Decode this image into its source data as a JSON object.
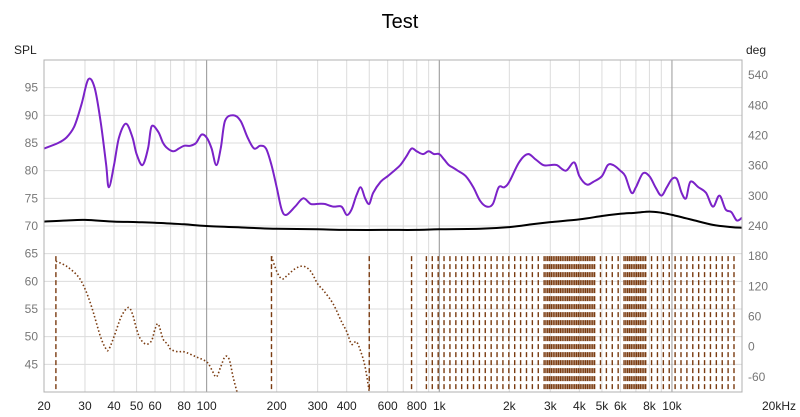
{
  "chart_data": {
    "type": "line",
    "title": "Test",
    "y_left_label": "SPL",
    "y_right_label": "deg",
    "x_unit": "Hz",
    "x_scale": "log",
    "xlim": [
      20,
      20000
    ],
    "ylim_left": [
      40,
      100
    ],
    "ylim_right": [
      -90,
      570
    ],
    "grid": true,
    "left_ticks": [
      {
        "value": 95,
        "label": "95"
      },
      {
        "value": 90,
        "label": "90"
      },
      {
        "value": 85,
        "label": "85"
      },
      {
        "value": 80,
        "label": "80"
      },
      {
        "value": 75,
        "label": "75"
      },
      {
        "value": 70,
        "label": "70"
      },
      {
        "value": 65,
        "label": "65"
      },
      {
        "value": 60,
        "label": "60"
      },
      {
        "value": 55,
        "label": "55"
      },
      {
        "value": 50,
        "label": "50"
      },
      {
        "value": 45,
        "label": "45"
      }
    ],
    "right_ticks": [
      {
        "value": 540,
        "label": "540"
      },
      {
        "value": 480,
        "label": "480"
      },
      {
        "value": 420,
        "label": "420"
      },
      {
        "value": 360,
        "label": "360"
      },
      {
        "value": 300,
        "label": "300"
      },
      {
        "value": 240,
        "label": "240"
      },
      {
        "value": 180,
        "label": "180"
      },
      {
        "value": 120,
        "label": "120"
      },
      {
        "value": 60,
        "label": "60"
      },
      {
        "value": 0,
        "label": "0"
      },
      {
        "value": -60,
        "label": "-60"
      }
    ],
    "x_ticks": [
      {
        "value": 20,
        "label": "20"
      },
      {
        "value": 30,
        "label": "30"
      },
      {
        "value": 40,
        "label": "40"
      },
      {
        "value": 50,
        "label": "50"
      },
      {
        "value": 60,
        "label": "60"
      },
      {
        "value": 80,
        "label": "80"
      },
      {
        "value": 100,
        "label": "100"
      },
      {
        "value": 200,
        "label": "200"
      },
      {
        "value": 300,
        "label": "300"
      },
      {
        "value": 400,
        "label": "400"
      },
      {
        "value": 600,
        "label": "600"
      },
      {
        "value": 800,
        "label": "800"
      },
      {
        "value": 1000,
        "label": "1k"
      },
      {
        "value": 2000,
        "label": "2k"
      },
      {
        "value": 3000,
        "label": "3k"
      },
      {
        "value": 4000,
        "label": "4k"
      },
      {
        "value": 5000,
        "label": "5k"
      },
      {
        "value": 6000,
        "label": "6k"
      },
      {
        "value": 8000,
        "label": "8k"
      },
      {
        "value": 10000,
        "label": "10k"
      },
      {
        "value": 20000,
        "label": "20kHz"
      }
    ],
    "series": [
      {
        "axis": "left",
        "color": "#7b22c8",
        "style": "solid",
        "x": [
          20,
          23,
          25,
          27,
          29,
          31,
          33,
          35,
          37,
          38,
          40,
          42,
          45,
          48,
          50,
          53,
          56,
          58,
          62,
          65,
          68,
          72,
          76,
          80,
          85,
          90,
          95,
          100,
          105,
          110,
          115,
          120,
          130,
          140,
          150,
          160,
          170,
          180,
          190,
          200,
          210,
          220,
          240,
          260,
          280,
          300,
          320,
          350,
          380,
          400,
          420,
          440,
          460,
          480,
          500,
          520,
          560,
          600,
          640,
          680,
          720,
          760,
          800,
          850,
          900,
          950,
          1000,
          1050,
          1100,
          1150,
          1200,
          1300,
          1400,
          1500,
          1600,
          1700,
          1800,
          1900,
          2000,
          2200,
          2400,
          2600,
          2800,
          3000,
          3200,
          3500,
          3800,
          4000,
          4300,
          4600,
          5000,
          5300,
          5600,
          6000,
          6300,
          6700,
          7000,
          7500,
          8000,
          8500,
          9000,
          9500,
          10000,
          10500,
          11000,
          11500,
          12000,
          13000,
          14000,
          15000,
          16000,
          17000,
          18000,
          19000,
          20000
        ],
        "values": [
          84,
          85,
          86,
          88,
          92,
          96.5,
          95,
          89,
          81,
          77,
          81,
          86,
          88.5,
          86,
          83,
          81,
          84,
          88,
          87,
          85,
          84,
          83.5,
          84,
          84.5,
          84.5,
          85,
          86.5,
          86,
          84,
          81,
          84,
          89,
          90,
          89,
          86,
          84,
          84.5,
          84,
          81,
          77,
          73,
          72,
          73.5,
          75,
          74,
          74,
          74,
          73.5,
          73.5,
          72,
          73,
          75.5,
          77,
          75,
          74,
          76,
          78,
          79,
          80,
          81,
          82.5,
          84,
          83.5,
          83,
          83.5,
          83,
          83,
          82,
          81,
          80.5,
          80,
          79,
          77,
          74.5,
          73.5,
          74,
          77,
          77,
          78,
          81.5,
          83,
          82,
          81,
          81,
          81,
          80,
          81.5,
          79,
          77.5,
          78,
          79,
          81,
          81,
          80,
          79,
          76,
          77,
          79.5,
          79,
          77,
          75.5,
          77,
          78.5,
          78.5,
          76,
          75,
          78,
          77,
          76,
          73.5,
          75.5,
          73,
          72.5,
          71,
          71.5
        ]
      },
      {
        "axis": "left",
        "color": "#000000",
        "style": "solid",
        "x": [
          20,
          25,
          30,
          40,
          50,
          60,
          80,
          100,
          150,
          200,
          300,
          400,
          600,
          800,
          1000,
          1500,
          2000,
          2500,
          3000,
          4000,
          5000,
          6000,
          7000,
          8000,
          9000,
          10000,
          12000,
          15000,
          18000,
          20000
        ],
        "values": [
          70.8,
          71.0,
          71.1,
          70.8,
          70.7,
          70.6,
          70.3,
          70.0,
          69.7,
          69.5,
          69.4,
          69.3,
          69.3,
          69.3,
          69.4,
          69.5,
          69.8,
          70.3,
          70.7,
          71.2,
          71.8,
          72.2,
          72.4,
          72.6,
          72.4,
          72.0,
          71.2,
          70.2,
          69.8,
          69.7
        ]
      },
      {
        "axis": "right",
        "color": "#7a3b10",
        "style": "dotted",
        "x": [
          22.5,
          25,
          28,
          30,
          32,
          35,
          37,
          38,
          40,
          43,
          46,
          48,
          50,
          52,
          55,
          58,
          60,
          62,
          65,
          68,
          70,
          75,
          80,
          90,
          100,
          105,
          110,
          115,
          120,
          125,
          130,
          135
        ],
        "values": [
          170,
          160,
          140,
          115,
          80,
          20,
          -5,
          -5,
          20,
          60,
          78,
          65,
          35,
          15,
          5,
          12,
          35,
          45,
          15,
          5,
          -5,
          -10,
          -10,
          -20,
          -30,
          -45,
          -60,
          -40,
          -20,
          -25,
          -60,
          -90
        ]
      },
      {
        "axis": "right",
        "color": "#7a3b10",
        "style": "dotted",
        "x": [
          190,
          200,
          210,
          220,
          240,
          260,
          280,
          300,
          320,
          350,
          380,
          400,
          420,
          440,
          460,
          480,
          500
        ],
        "values": [
          180,
          150,
          135,
          140,
          155,
          160,
          150,
          125,
          110,
          85,
          50,
          30,
          5,
          10,
          -10,
          -40,
          -90
        ]
      }
    ]
  }
}
